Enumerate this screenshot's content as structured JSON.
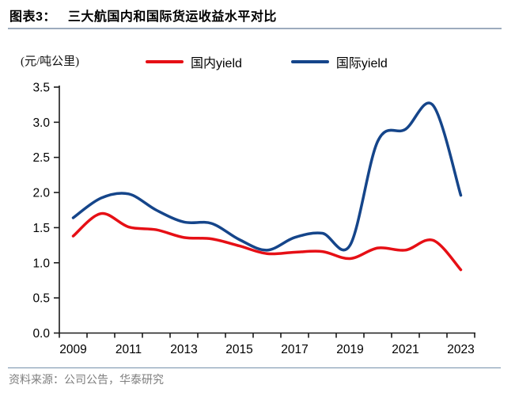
{
  "header": {
    "figure_label": "图表3：",
    "title": "三大航国内和国际货运收益水平对比"
  },
  "chart": {
    "unit_label": "(元/吨公里)"
  },
  "chart_data": {
    "type": "line",
    "title": "三大航国内和国际货运收益水平对比",
    "ylabel": "(元/吨公里)",
    "x": [
      2009,
      2010,
      2011,
      2012,
      2013,
      2014,
      2015,
      2016,
      2017,
      2018,
      2019,
      2020,
      2021,
      2022,
      2023
    ],
    "series": [
      {
        "name": "国内yield",
        "color": "#e60f15",
        "values": [
          1.38,
          1.7,
          1.51,
          1.47,
          1.36,
          1.34,
          1.24,
          1.13,
          1.15,
          1.16,
          1.06,
          1.21,
          1.18,
          1.32,
          0.9
        ]
      },
      {
        "name": "国际yield",
        "color": "#15458a",
        "values": [
          1.64,
          1.92,
          1.98,
          1.75,
          1.58,
          1.56,
          1.33,
          1.18,
          1.36,
          1.42,
          1.25,
          2.73,
          2.9,
          3.24,
          1.96
        ]
      }
    ],
    "ylim": [
      0.0,
      3.5
    ],
    "ytick_step": 0.5,
    "ytick_labels": [
      "0.0",
      "0.5",
      "1.0",
      "1.5",
      "2.0",
      "2.5",
      "3.0",
      "3.5"
    ],
    "xtick_labels": [
      "2009",
      "2011",
      "2013",
      "2015",
      "2017",
      "2019",
      "2021",
      "2023"
    ],
    "grid": false,
    "legend_position": "top",
    "line_style": "smooth"
  },
  "footer": {
    "source_note": "资料来源：公司公告，华泰研究"
  }
}
